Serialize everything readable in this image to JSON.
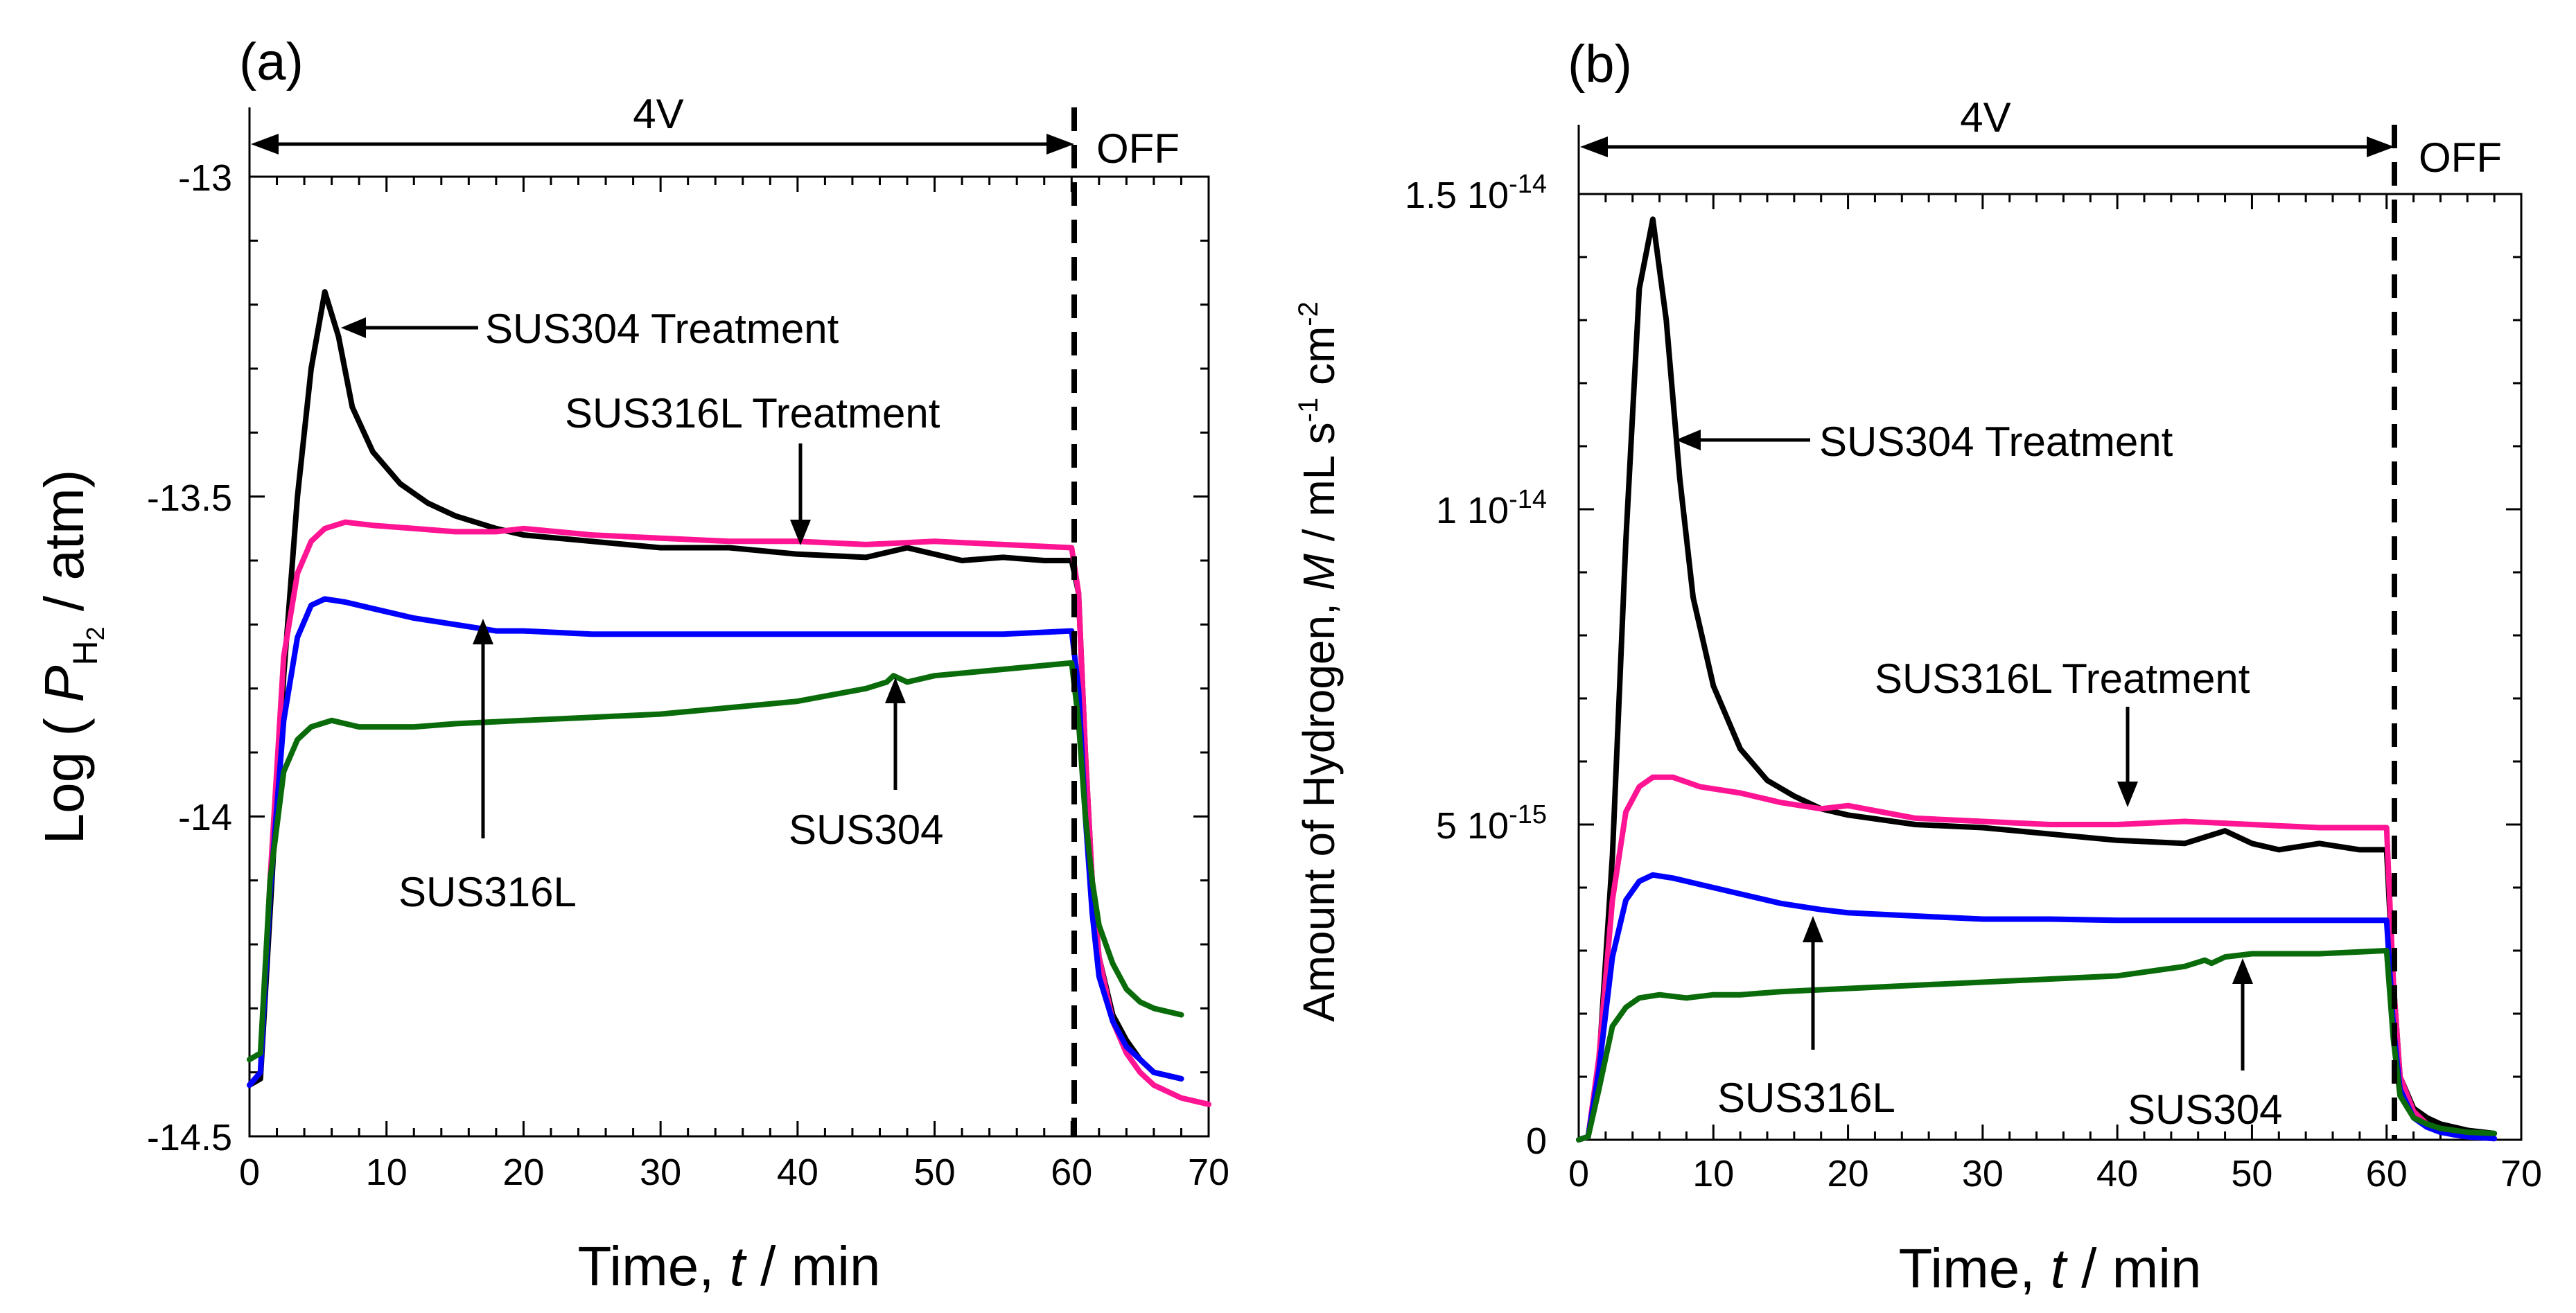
{
  "chart_data": [
    {
      "type": "line",
      "panel_label": "(a)",
      "xlabel": "Time, t / min",
      "ylabel": "Log ( P_H2 / atm)",
      "xlim": [
        0,
        70
      ],
      "ylim": [
        -14.5,
        -13.0
      ],
      "xticks": [
        "0",
        "10",
        "20",
        "30",
        "40",
        "50",
        "60",
        "70"
      ],
      "yticks": [
        "-13",
        "-13.5",
        "-14",
        "-14.5"
      ],
      "voltage_label": "4V",
      "off_label": "OFF",
      "series": [
        {
          "name": "SUS304 Treatment",
          "color": "#000000",
          "x": [
            0,
            0.8,
            1.5,
            2.5,
            3.5,
            4.5,
            5.5,
            6.5,
            7.5,
            9,
            11,
            13,
            15,
            18,
            20,
            25,
            30,
            35,
            40,
            45,
            48,
            50,
            52,
            55,
            58,
            60,
            60.5,
            61,
            61.5,
            62,
            63,
            64,
            65,
            66,
            68
          ],
          "y": [
            -14.42,
            -14.41,
            -14.15,
            -13.78,
            -13.5,
            -13.3,
            -13.18,
            -13.25,
            -13.36,
            -13.43,
            -13.48,
            -13.51,
            -13.53,
            -13.55,
            -13.56,
            -13.57,
            -13.58,
            -13.58,
            -13.59,
            -13.595,
            -13.58,
            -13.59,
            -13.6,
            -13.595,
            -13.6,
            -13.6,
            -13.65,
            -13.9,
            -14.1,
            -14.22,
            -14.31,
            -14.35,
            -14.38,
            -14.4,
            -14.41
          ]
        },
        {
          "name": "SUS316L Treatment",
          "color": "#ff1493",
          "x": [
            0,
            0.8,
            1.5,
            2.5,
            3.5,
            4.5,
            5.5,
            7,
            9,
            12,
            15,
            18,
            20,
            25,
            30,
            35,
            40,
            45,
            50,
            55,
            60,
            60.5,
            61,
            61.5,
            62,
            63,
            64,
            65,
            66,
            68,
            70
          ],
          "y": [
            -14.42,
            -14.4,
            -14.1,
            -13.75,
            -13.62,
            -13.57,
            -13.55,
            -13.54,
            -13.545,
            -13.55,
            -13.555,
            -13.555,
            -13.55,
            -13.56,
            -13.565,
            -13.57,
            -13.57,
            -13.575,
            -13.57,
            -13.575,
            -13.58,
            -13.65,
            -13.9,
            -14.1,
            -14.22,
            -14.32,
            -14.37,
            -14.4,
            -14.42,
            -14.44,
            -14.45
          ]
        },
        {
          "name": "SUS316L",
          "color": "#0000ff",
          "x": [
            0,
            0.8,
            1.5,
            2.5,
            3.5,
            4.5,
            5.5,
            7,
            9,
            12,
            15,
            18,
            20,
            25,
            30,
            35,
            40,
            45,
            50,
            55,
            60,
            60.5,
            61,
            61.5,
            62,
            63,
            64,
            65,
            66,
            68
          ],
          "y": [
            -14.42,
            -14.4,
            -14.12,
            -13.85,
            -13.72,
            -13.67,
            -13.66,
            -13.665,
            -13.675,
            -13.69,
            -13.7,
            -13.71,
            -13.71,
            -13.715,
            -13.715,
            -13.715,
            -13.715,
            -13.715,
            -13.715,
            -13.715,
            -13.71,
            -13.8,
            -14.0,
            -14.15,
            -14.25,
            -14.32,
            -14.36,
            -14.38,
            -14.4,
            -14.41
          ]
        },
        {
          "name": "SUS304",
          "color": "#0a6b0a",
          "x": [
            0,
            0.8,
            1.5,
            2.5,
            3.5,
            4.5,
            6,
            8,
            10,
            12,
            15,
            20,
            25,
            30,
            35,
            40,
            45,
            46.5,
            47,
            48,
            50,
            55,
            60,
            60.5,
            61,
            61.5,
            62,
            63,
            64,
            65,
            66,
            68
          ],
          "y": [
            -14.38,
            -14.37,
            -14.1,
            -13.93,
            -13.88,
            -13.86,
            -13.85,
            -13.86,
            -13.86,
            -13.86,
            -13.855,
            -13.85,
            -13.845,
            -13.84,
            -13.83,
            -13.82,
            -13.8,
            -13.79,
            -13.78,
            -13.79,
            -13.78,
            -13.77,
            -13.76,
            -13.85,
            -14.0,
            -14.1,
            -14.17,
            -14.23,
            -14.27,
            -14.29,
            -14.3,
            -14.31
          ]
        }
      ],
      "annotations": [
        "SUS304 Treatment",
        "SUS316L Treatment",
        "SUS316L",
        "SUS304"
      ]
    },
    {
      "type": "line",
      "panel_label": "(b)",
      "xlabel": "Time, t / min",
      "ylabel": "Amount of Hydrogen, M / mL s-1 cm-2",
      "xlim": [
        0,
        70
      ],
      "ylim": [
        0,
        1.5e-14
      ],
      "xticks": [
        "0",
        "10",
        "20",
        "30",
        "40",
        "50",
        "60",
        "70"
      ],
      "yticks": [
        {
          "mantissa": "1.5 10",
          "exponent": "-14"
        },
        {
          "mantissa": "1 10",
          "exponent": "-14"
        },
        {
          "mantissa": "5 10",
          "exponent": "-15"
        },
        {
          "mantissa": "0",
          "exponent": ""
        }
      ],
      "voltage_label": "4V",
      "off_label": "OFF",
      "series": [
        {
          "name": "SUS304 Treatment",
          "color": "#000000",
          "x": [
            0,
            0.7,
            1.5,
            2.5,
            3.5,
            4.5,
            5.5,
            6.5,
            7.5,
            8.5,
            10,
            12,
            14,
            16,
            18,
            20,
            25,
            30,
            35,
            40,
            45,
            48,
            50,
            52,
            55,
            58,
            60,
            60.5,
            61,
            62,
            63,
            64,
            65,
            66,
            68
          ],
          "y": [
            0,
            5e-17,
            1.2e-15,
            4.5e-15,
            9.5e-15,
            1.35e-14,
            1.46e-14,
            1.3e-14,
            1.05e-14,
            8.6e-15,
            7.2e-15,
            6.2e-15,
            5.7e-15,
            5.45e-15,
            5.25e-15,
            5.15e-15,
            5e-15,
            4.95e-15,
            4.85e-15,
            4.75e-15,
            4.7e-15,
            4.9e-15,
            4.7e-15,
            4.6e-15,
            4.7e-15,
            4.6e-15,
            4.6e-15,
            2.5e-15,
            1e-15,
            5e-16,
            3.5e-16,
            2.5e-16,
            2e-16,
            1.5e-16,
            1e-16
          ]
        },
        {
          "name": "SUS316L Treatment",
          "color": "#ff1493",
          "x": [
            0,
            0.7,
            1.5,
            2.5,
            3.5,
            4.5,
            5.5,
            7,
            9,
            12,
            15,
            18,
            20,
            25,
            30,
            35,
            40,
            45,
            50,
            55,
            60,
            60.5,
            61,
            62,
            63,
            64,
            65,
            66,
            68
          ],
          "y": [
            0,
            5e-17,
            1.3e-15,
            3.8e-15,
            5.2e-15,
            5.6e-15,
            5.75e-15,
            5.75e-15,
            5.6e-15,
            5.5e-15,
            5.35e-15,
            5.25e-15,
            5.3e-15,
            5.1e-15,
            5.05e-15,
            5e-15,
            5e-15,
            5.05e-15,
            5e-15,
            4.95e-15,
            4.95e-15,
            2.5e-15,
            1e-15,
            4.5e-16,
            2.5e-16,
            1.5e-16,
            8e-17,
            5e-17,
            2e-17
          ]
        },
        {
          "name": "SUS316L",
          "color": "#0000ff",
          "x": [
            0,
            0.7,
            1.5,
            2.5,
            3.5,
            4.5,
            5.5,
            7,
            9,
            12,
            15,
            18,
            20,
            25,
            30,
            35,
            40,
            45,
            50,
            55,
            60,
            60.5,
            61,
            62,
            63,
            64,
            65,
            66,
            68
          ],
          "y": [
            0,
            5e-17,
            1.1e-15,
            2.9e-15,
            3.8e-15,
            4.1e-15,
            4.2e-15,
            4.15e-15,
            4.05e-15,
            3.9e-15,
            3.75e-15,
            3.65e-15,
            3.6e-15,
            3.55e-15,
            3.5e-15,
            3.5e-15,
            3.48e-15,
            3.48e-15,
            3.48e-15,
            3.48e-15,
            3.48e-15,
            1.8e-15,
            8e-16,
            3.5e-16,
            2e-16,
            1.2e-16,
            8e-17,
            5e-17,
            2e-17
          ]
        },
        {
          "name": "SUS304",
          "color": "#0a6b0a",
          "x": [
            0,
            0.7,
            1.5,
            2.5,
            3.5,
            4.5,
            6,
            8,
            10,
            12,
            15,
            20,
            25,
            30,
            35,
            40,
            45,
            46.5,
            47,
            48,
            50,
            55,
            60,
            60.5,
            61,
            62,
            63,
            64,
            65,
            66,
            68
          ],
          "y": [
            0,
            5e-17,
            8e-16,
            1.8e-15,
            2.1e-15,
            2.25e-15,
            2.3e-15,
            2.25e-15,
            2.3e-15,
            2.3e-15,
            2.35e-15,
            2.4e-15,
            2.45e-15,
            2.5e-15,
            2.55e-15,
            2.6e-15,
            2.75e-15,
            2.85e-15,
            2.8e-15,
            2.9e-15,
            2.95e-15,
            2.95e-15,
            3e-15,
            1.6e-15,
            7e-16,
            3.5e-16,
            2.5e-16,
            1.8e-16,
            1.5e-16,
            1.2e-16,
            1e-16
          ]
        }
      ],
      "annotations": [
        "SUS304 Treatment",
        "SUS316L Treatment",
        "SUS316L",
        "SUS304"
      ]
    }
  ]
}
